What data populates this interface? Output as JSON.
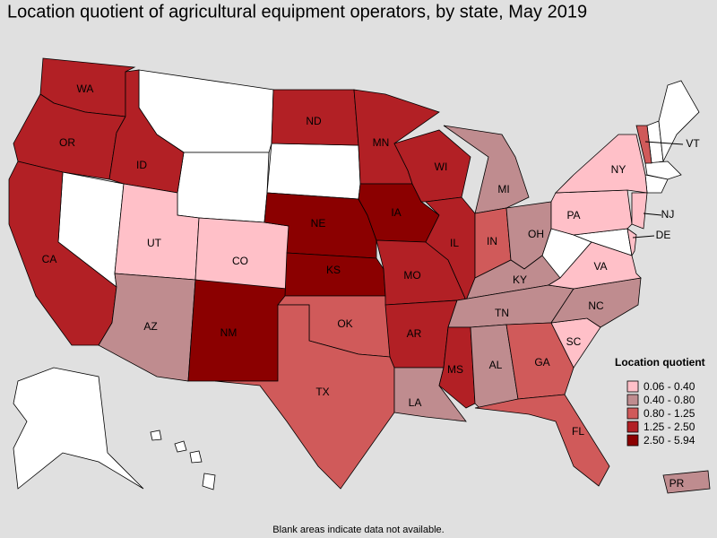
{
  "title": "Location quotient of agricultural equipment operators, by state, May 2019",
  "note": "Blank areas indicate data not available.",
  "legend": {
    "title": "Location quotient",
    "items": [
      {
        "label": "0.06 - 0.40",
        "color": "#ffc0c8"
      },
      {
        "label": "0.40 - 0.80",
        "color": "#bf8c8f"
      },
      {
        "label": "0.80 - 1.25",
        "color": "#d05a5a"
      },
      {
        "label": "1.25 - 2.50",
        "color": "#b22025"
      },
      {
        "label": "2.50 - 5.94",
        "color": "#8b0000"
      }
    ]
  },
  "states": [
    {
      "label": "WA",
      "color": "#b22025"
    },
    {
      "label": "OR",
      "color": "#b22025"
    },
    {
      "label": "CA",
      "color": "#b22025"
    },
    {
      "label": "ID",
      "color": "#b22025"
    },
    {
      "label": "UT",
      "color": "#ffc0c8"
    },
    {
      "label": "CO",
      "color": "#ffc0c8"
    },
    {
      "label": "AZ",
      "color": "#bf8c8f"
    },
    {
      "label": "NM",
      "color": "#8b0000"
    },
    {
      "label": "ND",
      "color": "#b22025"
    },
    {
      "label": "NE",
      "color": "#8b0000"
    },
    {
      "label": "KS",
      "color": "#8b0000"
    },
    {
      "label": "OK",
      "color": "#d05a5a"
    },
    {
      "label": "TX",
      "color": "#d05a5a"
    },
    {
      "label": "MN",
      "color": "#b22025"
    },
    {
      "label": "IA",
      "color": "#8b0000"
    },
    {
      "label": "MO",
      "color": "#b22025"
    },
    {
      "label": "AR",
      "color": "#b22025"
    },
    {
      "label": "LA",
      "color": "#bf8c8f"
    },
    {
      "label": "WI",
      "color": "#b22025"
    },
    {
      "label": "IL",
      "color": "#b22025"
    },
    {
      "label": "MI",
      "color": "#bf8c8f"
    },
    {
      "label": "IN",
      "color": "#d05a5a"
    },
    {
      "label": "OH",
      "color": "#bf8c8f"
    },
    {
      "label": "KY",
      "color": "#bf8c8f"
    },
    {
      "label": "TN",
      "color": "#bf8c8f"
    },
    {
      "label": "MS",
      "color": "#b22025"
    },
    {
      "label": "AL",
      "color": "#bf8c8f"
    },
    {
      "label": "GA",
      "color": "#d05a5a"
    },
    {
      "label": "FL",
      "color": "#d05a5a"
    },
    {
      "label": "SC",
      "color": "#ffc0c8"
    },
    {
      "label": "NC",
      "color": "#bf8c8f"
    },
    {
      "label": "VA",
      "color": "#ffc0c8"
    },
    {
      "label": "PA",
      "color": "#ffc0c8"
    },
    {
      "label": "NY",
      "color": "#ffc0c8"
    },
    {
      "label": "NJ",
      "color": "#ffc0c8"
    },
    {
      "label": "DE",
      "color": "#ffc0c8"
    },
    {
      "label": "VT",
      "color": "#d05a5a"
    },
    {
      "label": "PR",
      "color": "#bf8c8f"
    }
  ]
}
